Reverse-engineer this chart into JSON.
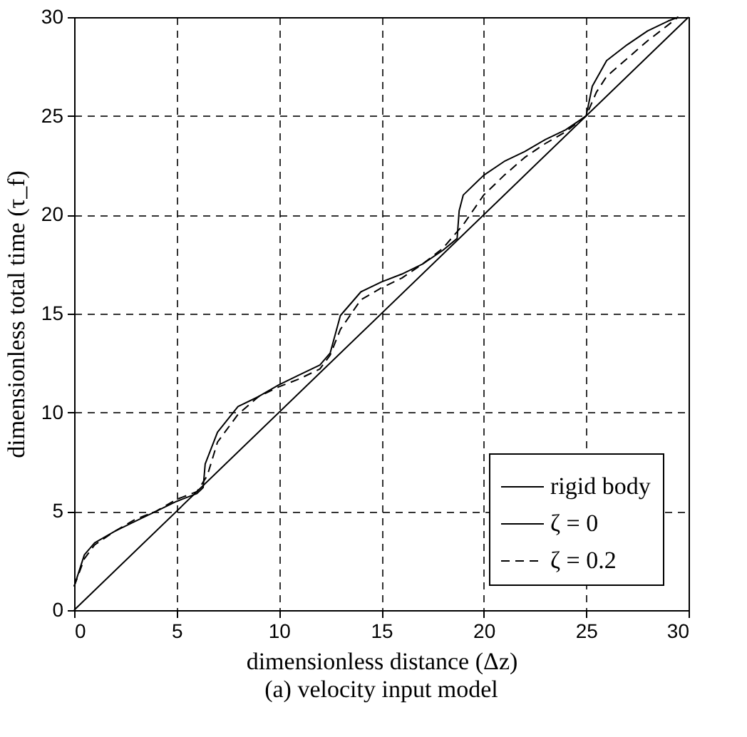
{
  "chart_data": {
    "type": "line",
    "title": "(a) velocity input model",
    "xlabel": "dimensionless distance (Δz)",
    "ylabel": "dimensionless total time (τ_f)",
    "xlim": [
      0,
      30
    ],
    "ylim": [
      0,
      30
    ],
    "xticks": [
      0,
      5,
      10,
      15,
      20,
      25,
      30
    ],
    "yticks": [
      0,
      5,
      10,
      15,
      20,
      25,
      30
    ],
    "grid": true,
    "legend": "bottom right",
    "series": [
      {
        "name": "rigid body",
        "color": "#000000",
        "line_style": "solid",
        "x": [
          0,
          30
        ],
        "values": [
          0,
          30
        ]
      },
      {
        "name": "ζ = 0",
        "color": "#000000",
        "line_style": "solid",
        "x": [
          0,
          0.5,
          1,
          2,
          3,
          4,
          5,
          6,
          6.3,
          6.4,
          7,
          8,
          9,
          10,
          11,
          12,
          12.5,
          13,
          14,
          15,
          16,
          17,
          18,
          18.7,
          18.8,
          19,
          20,
          21,
          22,
          23,
          24,
          25,
          25.3,
          26,
          27,
          28,
          29,
          29.5
        ],
        "values": [
          1.2,
          2.8,
          3.4,
          4.0,
          4.5,
          5.0,
          5.5,
          5.9,
          6.2,
          7.4,
          9.0,
          10.3,
          10.8,
          11.4,
          11.9,
          12.4,
          13.0,
          14.9,
          16.1,
          16.6,
          17.0,
          17.5,
          18.2,
          18.8,
          20.2,
          21.0,
          22.0,
          22.7,
          23.2,
          23.8,
          24.3,
          25.0,
          26.5,
          27.8,
          28.6,
          29.3,
          29.8,
          30
        ]
      },
      {
        "name": "ζ = 0.2",
        "color": "#000000",
        "line_style": "dashed",
        "x": [
          0,
          0.5,
          1,
          2,
          3,
          4,
          5,
          6,
          6.5,
          7,
          8,
          9,
          10,
          11,
          12,
          12.5,
          13,
          14,
          15,
          16,
          17,
          18,
          19,
          20,
          21,
          22,
          23,
          24,
          25,
          25.5,
          26,
          27,
          28,
          29,
          29.5
        ],
        "values": [
          1.2,
          2.6,
          3.3,
          4.0,
          4.6,
          5.0,
          5.6,
          6.0,
          6.8,
          8.5,
          9.9,
          10.8,
          11.3,
          11.7,
          12.2,
          12.9,
          14.2,
          15.7,
          16.3,
          16.8,
          17.5,
          18.3,
          19.5,
          21.0,
          22.0,
          22.9,
          23.6,
          24.2,
          25.0,
          26.2,
          27.0,
          27.9,
          28.8,
          29.6,
          30
        ]
      }
    ]
  }
}
